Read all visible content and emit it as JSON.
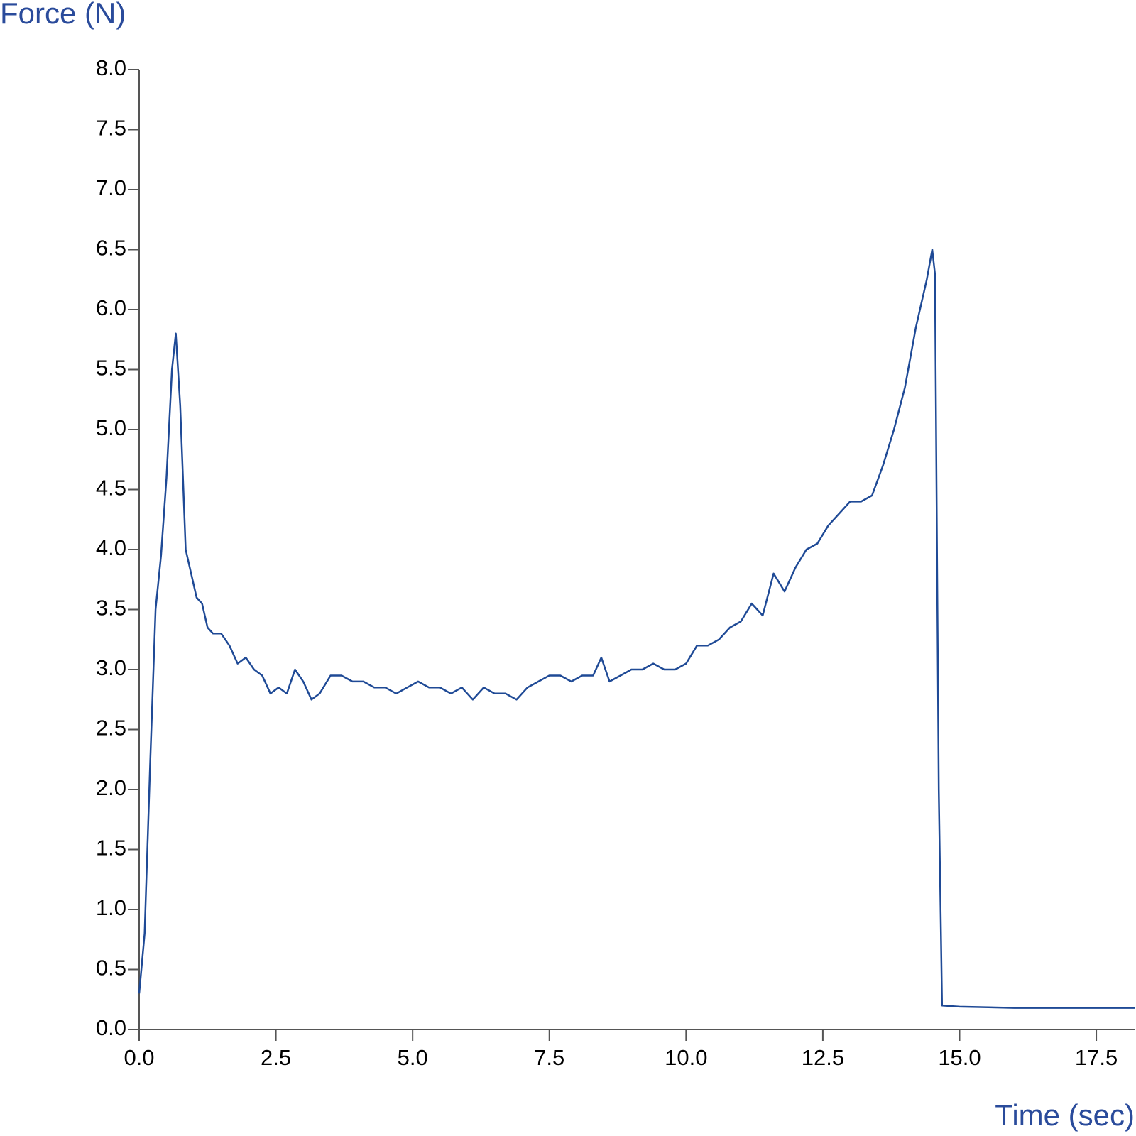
{
  "chart_data": {
    "type": "line",
    "y_label": "Force (N)",
    "x_label": "Time (sec)",
    "color": "#1f4a96",
    "x": [
      0.0,
      0.1,
      0.2,
      0.3,
      0.4,
      0.5,
      0.6,
      0.67,
      0.75,
      0.85,
      0.95,
      1.05,
      1.15,
      1.25,
      1.35,
      1.5,
      1.65,
      1.8,
      1.95,
      2.1,
      2.25,
      2.4,
      2.55,
      2.7,
      2.85,
      3.0,
      3.15,
      3.3,
      3.5,
      3.7,
      3.9,
      4.1,
      4.3,
      4.5,
      4.7,
      4.9,
      5.1,
      5.3,
      5.5,
      5.7,
      5.9,
      6.1,
      6.3,
      6.5,
      6.7,
      6.9,
      7.1,
      7.3,
      7.5,
      7.7,
      7.9,
      8.1,
      8.3,
      8.45,
      8.6,
      8.8,
      9.0,
      9.2,
      9.4,
      9.6,
      9.8,
      10.0,
      10.2,
      10.4,
      10.6,
      10.8,
      11.0,
      11.2,
      11.4,
      11.6,
      11.8,
      12.0,
      12.2,
      12.4,
      12.6,
      12.8,
      13.0,
      13.2,
      13.4,
      13.6,
      13.8,
      14.0,
      14.2,
      14.4,
      14.5,
      14.55,
      14.62,
      14.68,
      15.0,
      16.0,
      17.0,
      18.2
    ],
    "values": [
      0.3,
      0.8,
      2.2,
      3.5,
      3.95,
      4.6,
      5.5,
      5.8,
      5.2,
      4.0,
      3.8,
      3.6,
      3.55,
      3.35,
      3.3,
      3.3,
      3.2,
      3.05,
      3.1,
      3.0,
      2.95,
      2.8,
      2.85,
      2.8,
      3.0,
      2.9,
      2.75,
      2.8,
      2.95,
      2.95,
      2.9,
      2.9,
      2.85,
      2.85,
      2.8,
      2.85,
      2.9,
      2.85,
      2.85,
      2.8,
      2.85,
      2.75,
      2.85,
      2.8,
      2.8,
      2.75,
      2.85,
      2.9,
      2.95,
      2.95,
      2.9,
      2.95,
      2.95,
      3.1,
      2.9,
      2.95,
      3.0,
      3.0,
      3.05,
      3.0,
      3.0,
      3.05,
      3.2,
      3.2,
      3.25,
      3.35,
      3.4,
      3.55,
      3.45,
      3.8,
      3.65,
      3.85,
      4.0,
      4.05,
      4.2,
      4.3,
      4.4,
      4.4,
      4.45,
      4.7,
      5.0,
      5.35,
      5.85,
      6.25,
      6.5,
      6.3,
      2.0,
      0.2,
      0.19,
      0.18,
      0.18,
      0.18
    ],
    "xlim": [
      0,
      18.2
    ],
    "ylim": [
      0,
      8
    ],
    "xticks": [
      {
        "value": 0,
        "label": "0.0"
      },
      2.5,
      {
        "value": 5,
        "label": "5.0"
      },
      7.5,
      {
        "value": 10,
        "label": "10.0"
      },
      12.5,
      {
        "value": 15,
        "label": "15.0"
      },
      17.5
    ],
    "yticks": [
      {
        "value": 0,
        "label": "0.0"
      },
      0.5,
      {
        "value": 1,
        "label": "1.0"
      },
      1.5,
      {
        "value": 2,
        "label": "2.0"
      },
      2.5,
      {
        "value": 3,
        "label": "3.0"
      },
      3.5,
      {
        "value": 4,
        "label": "4.0"
      },
      4.5,
      {
        "value": 5,
        "label": "5.0"
      },
      5.5,
      {
        "value": 6,
        "label": "6.0"
      },
      6.5,
      {
        "value": 7,
        "label": "7.0"
      },
      7.5,
      {
        "value": 8,
        "label": "8.0"
      }
    ],
    "grid": false
  }
}
